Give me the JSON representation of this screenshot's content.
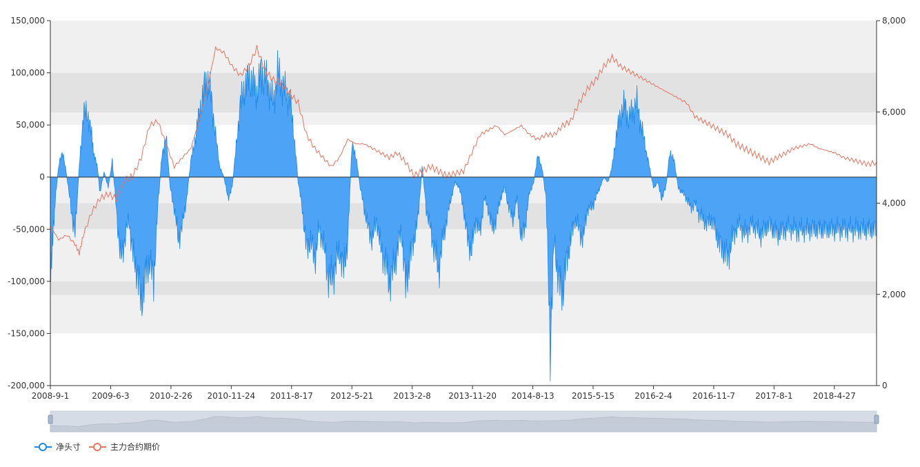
{
  "chart_data": {
    "type": "area",
    "title": "",
    "x_axis_labels": [
      "2008-9-1",
      "2009-6-3",
      "2010-2-26",
      "2010-11-24",
      "2011-8-17",
      "2012-5-21",
      "2013-2-8",
      "2013-11-20",
      "2014-8-13",
      "2015-5-15",
      "2016-2-4",
      "2016-11-7",
      "2017-8-1",
      "2018-4-27"
    ],
    "y_left": {
      "min": -200000,
      "max": 150000,
      "ticks": [
        "150,000",
        "100,000",
        "50,000",
        "0",
        "-50,000",
        "-100,000",
        "-150,000",
        "-200,000"
      ]
    },
    "y_right": {
      "min": 0,
      "max": 8000,
      "ticks": [
        "8,000",
        "6,000",
        "4,000",
        "2,000",
        "0"
      ]
    },
    "grid_bands": [
      {
        "from": 100000,
        "to": 150000,
        "color": "#f0f0f0"
      },
      {
        "from": 62000,
        "to": 100000,
        "color": "#e2e2e2"
      },
      {
        "from": 50000,
        "to": 62000,
        "color": "#f0f0f0"
      },
      {
        "from": 0,
        "to": -25000,
        "color": "#f0f0f0"
      },
      {
        "from": -25000,
        "to": -50000,
        "color": "#e2e2e2"
      },
      {
        "from": -50000,
        "to": -100000,
        "color": "#f0f0f0"
      },
      {
        "from": -100000,
        "to": -113000,
        "color": "#e2e2e2"
      },
      {
        "from": -113000,
        "to": -150000,
        "color": "#f0f0f0"
      }
    ],
    "series": [
      {
        "name": "净头寸",
        "axis": "left",
        "type": "area",
        "color": "#1e88e5",
        "fill": "#4da3f5",
        "x": [
          0,
          0.3,
          0.6,
          1,
          1.5,
          2,
          2.5,
          3,
          3.5,
          4,
          4.5,
          5,
          5.3,
          5.7,
          6,
          6.5,
          7,
          7.5,
          8,
          8.5,
          9,
          9.5,
          10,
          10.5,
          11,
          11.5,
          12,
          12.5,
          13,
          13.5,
          14,
          14.5,
          15,
          15.5,
          16,
          16.5,
          17,
          17.5,
          18,
          18.5,
          19,
          19.5,
          20,
          20.5,
          21,
          21.5,
          22,
          22.5,
          23,
          23.5,
          24,
          24.5,
          25,
          25.5,
          26,
          26.5,
          27,
          27.5,
          28,
          28.5,
          29,
          29.5,
          30,
          30.5,
          31,
          31.5,
          32,
          32.5,
          33,
          33.5,
          34,
          34.5,
          35,
          35.5,
          36,
          36.5,
          37,
          37.5,
          38,
          38.5,
          39,
          39.5,
          40,
          40.5,
          41,
          41.5,
          42,
          42.5,
          43,
          43.5,
          44,
          44.5,
          45,
          45.5,
          46,
          46.5,
          47,
          47.5,
          48,
          48.5,
          49,
          49.5,
          50,
          50.5,
          51,
          51.5,
          52,
          52.5,
          53,
          53.5,
          54,
          54.5,
          55,
          55.5,
          56,
          56.5,
          57,
          57.5,
          58,
          58.5,
          59,
          59.5,
          60,
          60.5,
          61,
          61.5,
          62,
          62.5,
          63,
          63.5,
          64,
          64.5,
          65,
          65.5,
          66,
          66.5,
          67,
          67.5,
          68,
          68.5,
          69,
          69.5,
          70,
          70.5,
          71,
          71.5,
          72,
          72.5,
          73,
          73.5,
          74,
          74.5,
          75,
          75.5,
          76,
          76.5,
          77,
          77.5,
          78,
          78.5,
          79,
          79.5,
          80,
          80.5,
          81,
          81.5,
          82,
          82.5,
          83,
          83.5,
          84,
          84.5,
          85,
          85.5,
          86,
          86.5,
          87,
          87.5,
          88,
          88.5,
          89,
          89.5,
          90,
          90.5,
          91,
          91.5,
          92,
          92.5,
          93,
          93.5,
          94,
          94.5,
          95,
          95.5,
          96,
          96.5,
          97,
          97.5,
          98,
          98.5,
          99,
          99.5,
          100
        ],
        "values": [
          -90000,
          -60000,
          -20000,
          10000,
          25000,
          0,
          -30000,
          -55000,
          10000,
          60000,
          62000,
          40000,
          20000,
          10000,
          -15000,
          5000,
          -10000,
          15000,
          -30000,
          -80000,
          -60000,
          -40000,
          -75000,
          -90000,
          -120000,
          -95000,
          -80000,
          -100000,
          -30000,
          20000,
          40000,
          -10000,
          -30000,
          -60000,
          -45000,
          -20000,
          15000,
          35000,
          60000,
          80000,
          95000,
          75000,
          40000,
          10000,
          0,
          -20000,
          -10000,
          30000,
          70000,
          85000,
          95000,
          90000,
          80000,
          100000,
          95000,
          85000,
          70000,
          100000,
          90000,
          80000,
          75000,
          40000,
          -5000,
          -30000,
          -70000,
          -60000,
          -80000,
          -50000,
          -60000,
          -90000,
          -100000,
          -85000,
          -70000,
          -90000,
          -60000,
          30000,
          20000,
          -10000,
          -30000,
          -50000,
          -60000,
          -40000,
          -70000,
          -80000,
          -100000,
          -90000,
          -70000,
          -50000,
          -105000,
          -80000,
          -60000,
          -40000,
          10000,
          -30000,
          -50000,
          -70000,
          -90000,
          -60000,
          -40000,
          -20000,
          -5000,
          -10000,
          -30000,
          -60000,
          -70000,
          -40000,
          -55000,
          -20000,
          -30000,
          -50000,
          -40000,
          -20000,
          -10000,
          -30000,
          -40000,
          -20000,
          -60000,
          -45000,
          -15000,
          -5000,
          20000,
          10000,
          -20000,
          -160000,
          -60000,
          -100000,
          -110000,
          -80000,
          -60000,
          -40000,
          -50000,
          -60000,
          -30000,
          -30000,
          -20000,
          -10000,
          0,
          -5000,
          10000,
          40000,
          60000,
          70000,
          55000,
          65000,
          70000,
          50000,
          30000,
          10000,
          -10000,
          -5000,
          -20000,
          -10000,
          25000,
          15000,
          -10000,
          -15000,
          -20000,
          -30000,
          -25000,
          -35000,
          -40000,
          -45000,
          -40000,
          -50000,
          -65000,
          -70000,
          -78000,
          -60000,
          -50000,
          -45000,
          -55000,
          -50000,
          -45000,
          -50000,
          -55000,
          -50000,
          -45000,
          -50000,
          -55000,
          -52000,
          -50000,
          -48000,
          -50000,
          -52000,
          -50000,
          -51000,
          -50000,
          -50000,
          -50000,
          -50000,
          -50000,
          -50000,
          -50000,
          -50000,
          -50000,
          -50000,
          -50000,
          -50000,
          -50000,
          -50000,
          -50000,
          -50000,
          -50000
        ]
      },
      {
        "name": "主力合约期价",
        "axis": "right",
        "type": "line",
        "color": "#e8735f",
        "x": [
          0,
          1,
          2,
          3,
          3.5,
          4,
          5,
          6,
          7,
          8,
          9,
          10,
          11,
          12,
          13,
          14,
          15,
          16,
          17,
          18,
          19,
          20,
          21,
          22,
          23,
          24,
          25,
          26,
          27,
          28,
          29,
          30,
          31,
          32,
          33,
          34,
          35,
          36,
          37,
          38,
          39,
          40,
          41,
          42,
          43,
          44,
          45,
          46,
          47,
          48,
          49,
          50,
          51,
          52,
          53,
          54,
          55,
          56,
          57,
          58,
          59,
          60,
          61,
          62,
          63,
          64,
          65,
          66,
          67,
          68,
          69,
          70,
          71,
          72,
          73,
          74,
          75,
          76,
          77,
          78,
          79,
          80,
          81,
          82,
          83,
          84,
          85,
          86,
          87,
          88,
          89,
          90,
          91,
          92,
          93,
          94,
          95,
          96,
          97,
          98,
          99,
          100
        ],
        "values": [
          3500,
          3200,
          3300,
          3100,
          2900,
          3300,
          3800,
          4100,
          4200,
          4100,
          4500,
          4600,
          5000,
          5700,
          5800,
          5300,
          4800,
          5000,
          5200,
          5800,
          6500,
          7400,
          7300,
          7000,
          6800,
          7000,
          7400,
          6900,
          6700,
          6600,
          6400,
          6200,
          5500,
          5200,
          5000,
          4800,
          5000,
          5400,
          5300,
          5300,
          5200,
          5100,
          5000,
          5100,
          4900,
          4600,
          4700,
          4800,
          4700,
          4600,
          4650,
          4700,
          5100,
          5500,
          5600,
          5700,
          5500,
          5600,
          5700,
          5500,
          5400,
          5500,
          5500,
          5700,
          5800,
          6200,
          6500,
          6700,
          7000,
          7200,
          7000,
          6900,
          6800,
          6700,
          6600,
          6500,
          6400,
          6300,
          6200,
          5900,
          5800,
          5700,
          5600,
          5500,
          5300,
          5200,
          5100,
          5000,
          4900,
          5000,
          5100,
          5200,
          5250,
          5300,
          5200,
          5150,
          5100,
          5000,
          4950,
          4900,
          4850,
          4900
        ]
      }
    ],
    "legend": {
      "position": "bottom-left"
    }
  },
  "legend": {
    "items": [
      {
        "label": "净头寸",
        "color": "#1e88e5"
      },
      {
        "label": "主力合约期价",
        "color": "#e8735f"
      }
    ]
  },
  "data_zoom": {
    "range_start": 0,
    "range_end": 100
  }
}
